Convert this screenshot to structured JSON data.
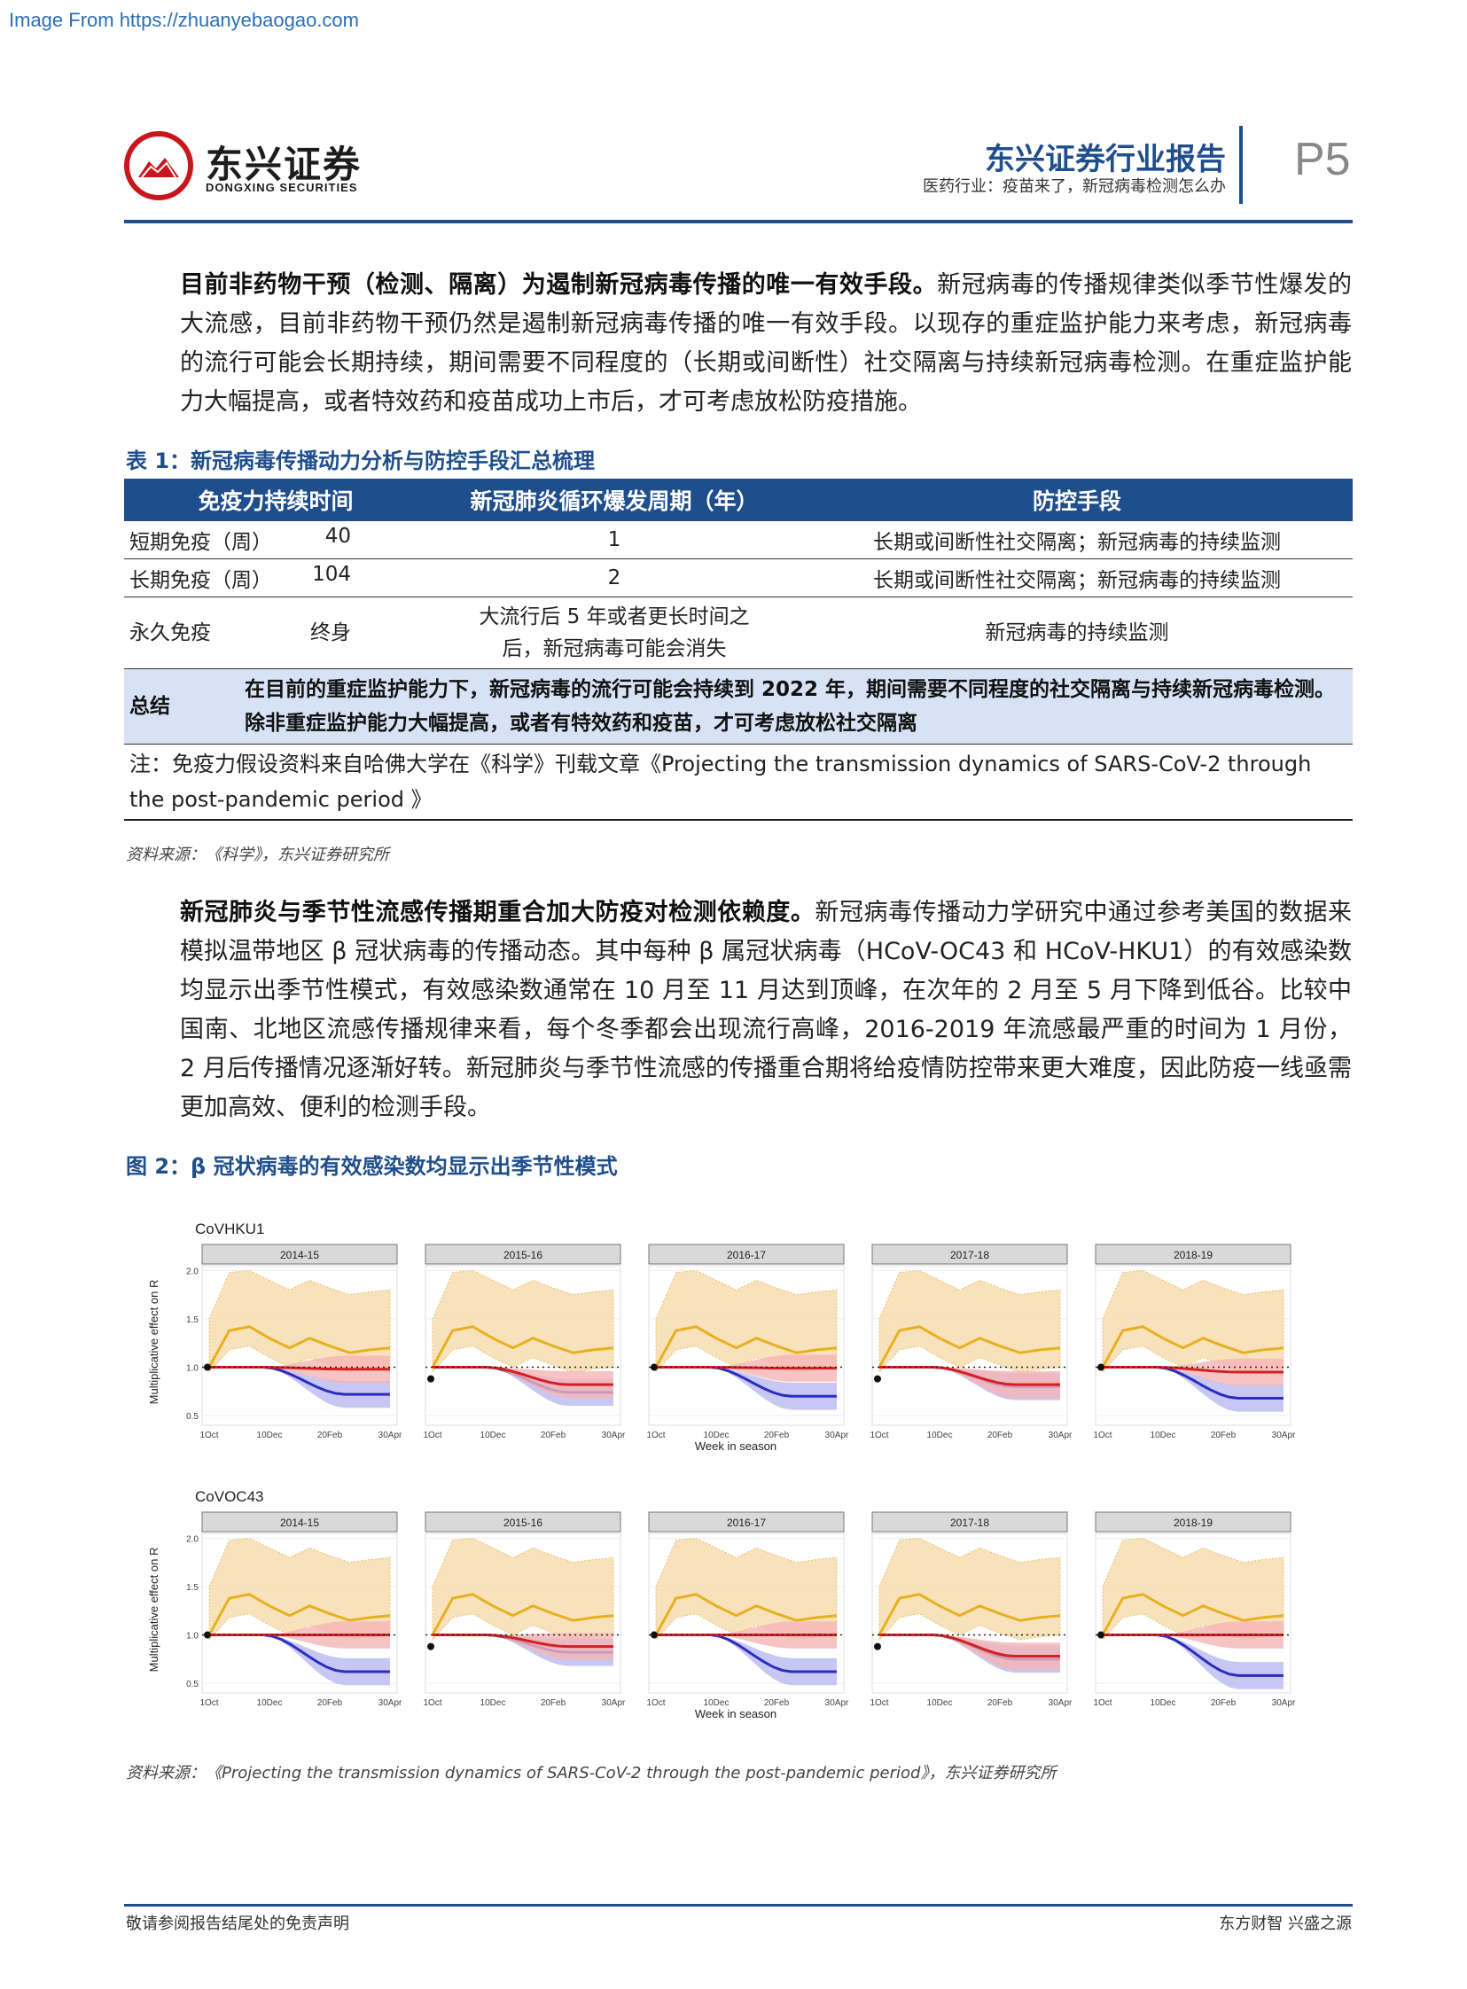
{
  "watermark": "Image From https://zhuanyebaogao.com",
  "header": {
    "logo_cn": "东兴证券",
    "logo_en": "DONGXING SECURITIES",
    "title": "东兴证券行业报告",
    "subtitle": "医药行业：疫苗来了，新冠病毒检测怎么办",
    "page": "P5"
  },
  "para1": {
    "bold": "目前非药物干预（检测、隔离）为遏制新冠病毒传播的唯一有效手段。",
    "text": "新冠病毒的传播规律类似季节性爆发的大流感，目前非药物干预仍然是遏制新冠病毒传播的唯一有效手段。以现存的重症监护能力来考虑，新冠病毒的流行可能会长期持续，期间需要不同程度的（长期或间断性）社交隔离与持续新冠病毒检测。在重症监护能力大幅提高，或者特效药和疫苗成功上市后，才可考虑放松防疫措施。"
  },
  "table1": {
    "caption": "表 1：新冠病毒传播动力分析与防控手段汇总梳理",
    "headers": [
      "免疫力持续时间",
      "新冠肺炎循环爆发周期（年）",
      "防控手段"
    ],
    "rows": [
      {
        "type": "短期免疫（周）",
        "duration": "40",
        "cycle": "1",
        "measure": "长期或间断性社交隔离；新冠病毒的持续监测"
      },
      {
        "type": "长期免疫（周）",
        "duration": "104",
        "cycle": "2",
        "measure": "长期或间断性社交隔离；新冠病毒的持续监测"
      },
      {
        "type": "永久免疫",
        "duration": "终身",
        "cycle": "大流行后 5 年或者更长时间之后，新冠病毒可能会消失",
        "measure": "新冠病毒的持续监测"
      }
    ],
    "summary_label": "总结",
    "summary_text": "在目前的重症监护能力下，新冠病毒的流行可能会持续到 2022 年，期间需要不同程度的社交隔离与持续新冠病毒检测。除非重症监护能力大幅提高，或者有特效药和疫苗，才可考虑放松社交隔离",
    "note": "注：免疫力假设资料来自哈佛大学在《科学》刊载文章《Projecting the transmission dynamics of SARS-CoV-2 through the post-pandemic period 》",
    "source": "资料来源：《科学》，东兴证券研究所"
  },
  "para2": {
    "bold": "新冠肺炎与季节性流感传播期重合加大防疫对检测依赖度。",
    "text": "新冠病毒传播动力学研究中通过参考美国的数据来模拟温带地区 β 冠状病毒的传播动态。其中每种 β 属冠状病毒（HCoV-OC43 和 HCoV-HKU1）的有效感染数均显示出季节性模式，有效感染数通常在 10 月至 11 月达到顶峰，在次年的 2 月至 5 月下降到低谷。比较中国南、北地区流感传播规律来看，每个冬季都会出现流行高峰，2016-2019 年流感最严重的时间为 1 月份， 2 月后传播情况逐渐好转。新冠肺炎与季节性流感的传播重合期将给疫情防控带来更大难度，因此防疫一线亟需更加高效、便利的检测手段。"
  },
  "figure2": {
    "caption": "图 2：β 冠状病毒的有效感染数均显示出季节性模式",
    "source": "资料来源：《Projecting the transmission dynamics of SARS-CoV-2 through the post-pandemic period》，东兴证券研究所",
    "ylabel": "Multiplicative effect on R",
    "xlabel": "Week in season",
    "yticks": [
      "0.5",
      "1.0",
      "1.5",
      "2.0"
    ],
    "xticks": [
      "1Oct",
      "10Dec",
      "20Feb",
      "30Apr"
    ],
    "seasons": [
      "2014-15",
      "2015-16",
      "2016-17",
      "2017-18",
      "2018-19"
    ],
    "groups": [
      "CoVHKU1",
      "CoVOC43"
    ],
    "colors": {
      "yellow": "#e8b020",
      "yellow_band": "#f7ddb0",
      "red": "#d42020",
      "red_band": "#f5b5b5",
      "blue": "#2a2ec0",
      "blue_band": "#b9b9f0"
    }
  },
  "chart_data": [
    {
      "type": "line",
      "title": "CoVHKU1",
      "xlabel": "Week in season",
      "ylabel": "Multiplicative effect on R",
      "ylim": [
        0.4,
        2.05
      ],
      "x": [
        "1Oct",
        "10Dec",
        "20Feb",
        "30Apr"
      ],
      "panels": [
        "2014-15",
        "2015-16",
        "2016-17",
        "2017-18",
        "2018-19"
      ],
      "series": [],
      "red_end_by_season": [
        0.98,
        0.82,
        0.99,
        0.82,
        0.95
      ],
      "blue_end_by_season": [
        0.72,
        0.74,
        0.7,
        0.8,
        0.68
      ],
      "yellow_profile": [
        1.0,
        1.38,
        1.42,
        1.3,
        1.2,
        1.3,
        1.22,
        1.15,
        1.18,
        1.2
      ]
    },
    {
      "type": "line",
      "title": "CoVOC43",
      "xlabel": "Week in season",
      "ylabel": "Multiplicative effect on R",
      "ylim": [
        0.4,
        2.05
      ],
      "x": [
        "1Oct",
        "10Dec",
        "20Feb",
        "30Apr"
      ],
      "panels": [
        "2014-15",
        "2015-16",
        "2016-17",
        "2017-18",
        "2018-19"
      ],
      "series": [],
      "red_end_by_season": [
        1.0,
        0.88,
        1.0,
        0.78,
        1.0
      ],
      "blue_end_by_season": [
        0.62,
        0.82,
        0.62,
        0.75,
        0.58
      ],
      "yellow_profile": [
        1.0,
        1.38,
        1.42,
        1.3,
        1.2,
        1.3,
        1.22,
        1.15,
        1.18,
        1.2
      ]
    }
  ],
  "footer": {
    "left": "敬请参阅报告结尾处的免责声明",
    "right": "东方财智 兴盛之源"
  }
}
